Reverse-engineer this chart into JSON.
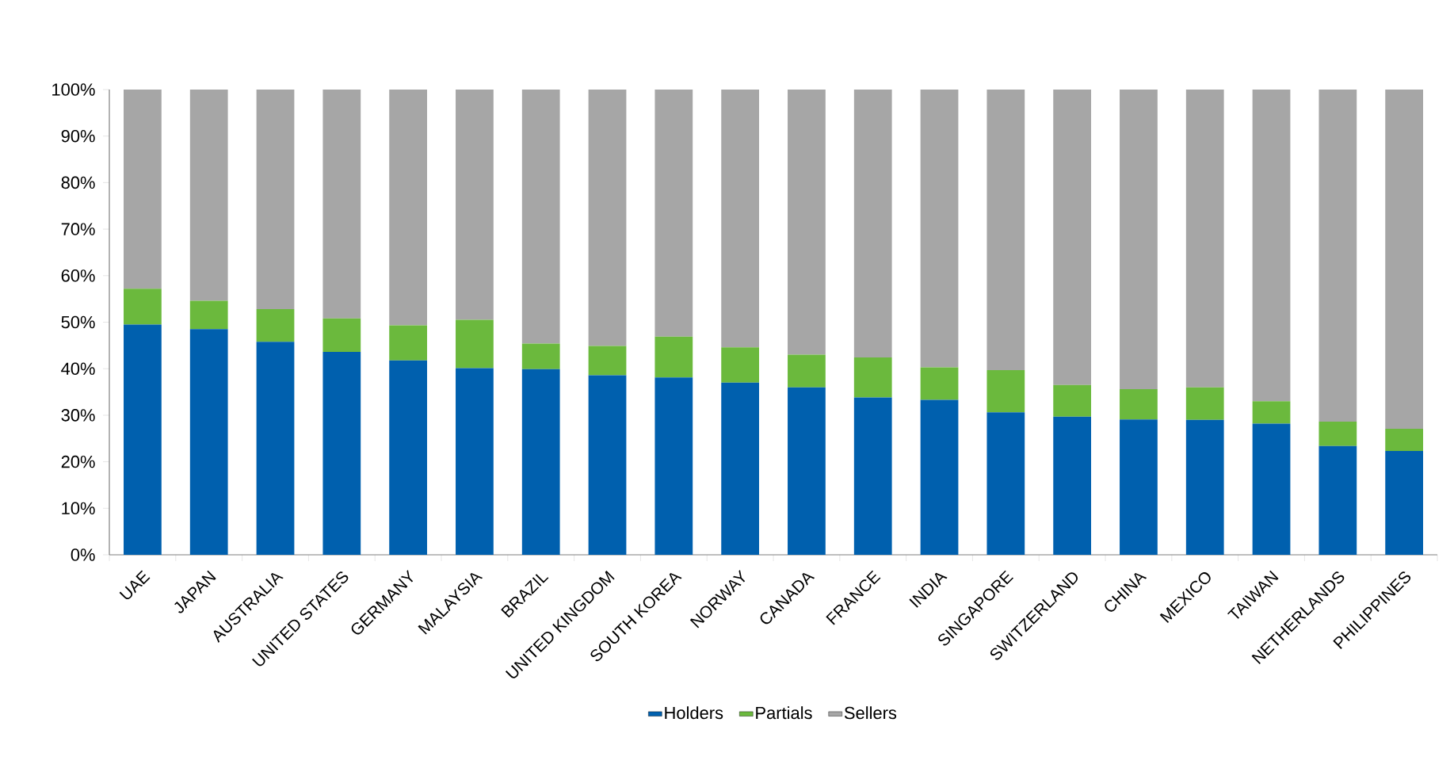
{
  "chart_data": {
    "type": "bar",
    "stacked": true,
    "categories": [
      "UAE",
      "JAPAN",
      "AUSTRALIA",
      "UNITED STATES",
      "GERMANY",
      "MALAYSIA",
      "BRAZIL",
      "UNITED KINGDOM",
      "SOUTH KOREA",
      "NORWAY",
      "CANADA",
      "FRANCE",
      "INDIA",
      "SINGAPORE",
      "SWITZERLAND",
      "CHINA",
      "MEXICO",
      "TAIWAN",
      "NETHERLANDS",
      "PHILIPPINES"
    ],
    "series": [
      {
        "name": "Holders",
        "color": "#0060ae",
        "values": [
          49.5,
          48.5,
          45.8,
          43.6,
          41.8,
          40.1,
          39.9,
          38.6,
          38.1,
          37.0,
          36.0,
          33.8,
          33.3,
          30.6,
          29.7,
          29.1,
          29.0,
          28.2,
          23.4,
          22.3
        ]
      },
      {
        "name": "Partials",
        "color": "#6bb93d",
        "values": [
          7.7,
          6.1,
          7.0,
          7.2,
          7.5,
          10.4,
          5.5,
          6.3,
          8.8,
          7.6,
          7.0,
          8.6,
          7.0,
          9.1,
          6.8,
          6.5,
          7.0,
          4.8,
          5.2,
          4.8
        ]
      },
      {
        "name": "Sellers",
        "color": "#a6a6a6",
        "values": [
          42.8,
          45.4,
          47.2,
          49.2,
          50.7,
          49.5,
          54.6,
          55.1,
          53.1,
          55.4,
          57.0,
          57.6,
          59.7,
          60.3,
          63.5,
          64.4,
          64.0,
          67.0,
          71.4,
          72.9
        ]
      }
    ],
    "ylim": [
      0,
      100
    ],
    "yticks": [
      {
        "value": 0,
        "label": "0%"
      },
      {
        "value": 10,
        "label": "10%"
      },
      {
        "value": 20,
        "label": "20%"
      },
      {
        "value": 30,
        "label": "30%"
      },
      {
        "value": 40,
        "label": "40%"
      },
      {
        "value": 50,
        "label": "50%"
      },
      {
        "value": 60,
        "label": "60%"
      },
      {
        "value": 70,
        "label": "70%"
      },
      {
        "value": 80,
        "label": "80%"
      },
      {
        "value": 90,
        "label": "90%"
      },
      {
        "value": 100,
        "label": "100%"
      }
    ],
    "grid": false,
    "legend": "bottom"
  }
}
